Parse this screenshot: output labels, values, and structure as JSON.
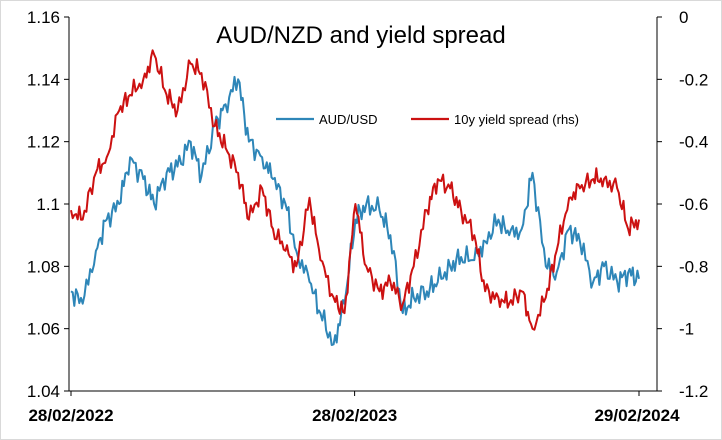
{
  "chart_data": {
    "type": "line",
    "title": "AUD/NZD and yield spread",
    "x_ticks": [
      "28/02/2022",
      "28/02/2023",
      "29/02/2024"
    ],
    "y_left": {
      "range": [
        1.04,
        1.16
      ],
      "ticks": [
        "1.16",
        "1.14",
        "1.12",
        "1.1",
        "1.08",
        "1.06",
        "1.04"
      ]
    },
    "y_right": {
      "range": [
        -1.2,
        0
      ],
      "ticks": [
        "0",
        "-0.2",
        "-0.4",
        "-0.6",
        "-0.8",
        "-1",
        "-1.2"
      ]
    },
    "grid": false,
    "legend_position": "upper-center",
    "series": [
      {
        "name": "AUD/USD",
        "axis": "left",
        "color": "#2e86b8",
        "x": [
          "2022-02-28",
          "2022-03-15",
          "2022-04-01",
          "2022-04-15",
          "2022-05-01",
          "2022-05-15",
          "2022-06-01",
          "2022-06-15",
          "2022-07-01",
          "2022-07-15",
          "2022-08-01",
          "2022-08-15",
          "2022-09-01",
          "2022-09-15",
          "2022-10-01",
          "2022-10-15",
          "2022-11-01",
          "2022-11-15",
          "2022-12-01",
          "2022-12-15",
          "2023-01-01",
          "2023-01-15",
          "2023-02-01",
          "2023-02-15",
          "2023-03-01",
          "2023-03-15",
          "2023-04-01",
          "2023-04-15",
          "2023-05-01",
          "2023-05-15",
          "2023-06-01",
          "2023-06-15",
          "2023-07-01",
          "2023-07-15",
          "2023-08-01",
          "2023-08-15",
          "2023-09-01",
          "2023-09-15",
          "2023-10-01",
          "2023-10-15",
          "2023-11-01",
          "2023-11-15",
          "2023-12-01",
          "2023-12-15",
          "2024-01-01",
          "2024-01-15",
          "2024-02-01",
          "2024-02-15",
          "2024-02-29"
        ],
        "values": [
          1.072,
          1.068,
          1.085,
          1.095,
          1.1,
          1.115,
          1.108,
          1.1,
          1.11,
          1.112,
          1.12,
          1.109,
          1.125,
          1.132,
          1.14,
          1.12,
          1.115,
          1.108,
          1.1,
          1.085,
          1.075,
          1.065,
          1.055,
          1.068,
          1.095,
          1.1,
          1.098,
          1.09,
          1.065,
          1.07,
          1.072,
          1.075,
          1.08,
          1.083,
          1.082,
          1.088,
          1.095,
          1.09,
          1.092,
          1.11,
          1.08,
          1.078,
          1.092,
          1.088,
          1.075,
          1.08,
          1.075,
          1.078,
          1.076
        ]
      },
      {
        "name": "10y yield spread (rhs)",
        "axis": "right",
        "color": "#cc1111",
        "x": [
          "2022-02-28",
          "2022-03-15",
          "2022-04-01",
          "2022-04-15",
          "2022-05-01",
          "2022-05-15",
          "2022-06-01",
          "2022-06-15",
          "2022-07-01",
          "2022-07-15",
          "2022-08-01",
          "2022-08-15",
          "2022-09-01",
          "2022-09-15",
          "2022-10-01",
          "2022-10-15",
          "2022-11-01",
          "2022-11-15",
          "2022-12-01",
          "2022-12-15",
          "2023-01-01",
          "2023-01-15",
          "2023-02-01",
          "2023-02-15",
          "2023-03-01",
          "2023-03-15",
          "2023-04-01",
          "2023-04-15",
          "2023-05-01",
          "2023-05-15",
          "2023-06-01",
          "2023-06-15",
          "2023-07-01",
          "2023-07-15",
          "2023-08-01",
          "2023-08-15",
          "2023-09-01",
          "2023-09-15",
          "2023-10-01",
          "2023-10-15",
          "2023-11-01",
          "2023-11-15",
          "2023-12-01",
          "2023-12-15",
          "2024-01-01",
          "2024-01-15",
          "2024-02-01",
          "2024-02-15",
          "2024-02-29"
        ],
        "values": [
          -0.62,
          -0.65,
          -0.5,
          -0.45,
          -0.3,
          -0.25,
          -0.2,
          -0.12,
          -0.25,
          -0.3,
          -0.15,
          -0.18,
          -0.35,
          -0.42,
          -0.5,
          -0.65,
          -0.55,
          -0.68,
          -0.75,
          -0.8,
          -0.58,
          -0.78,
          -0.9,
          -0.95,
          -0.6,
          -0.8,
          -0.88,
          -0.85,
          -0.92,
          -0.8,
          -0.62,
          -0.52,
          -0.55,
          -0.62,
          -0.7,
          -0.88,
          -0.9,
          -0.92,
          -0.88,
          -1.0,
          -0.9,
          -0.75,
          -0.58,
          -0.55,
          -0.52,
          -0.52,
          -0.55,
          -0.68,
          -0.65
        ]
      }
    ]
  }
}
